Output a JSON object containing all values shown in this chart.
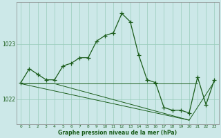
{
  "title": "Graphe pression niveau de la mer (hPa)",
  "bg_color": "#cce8e8",
  "grid_color": "#99ccbb",
  "line_color": "#1a5c1a",
  "xlim": [
    -0.5,
    23.5
  ],
  "ylim": [
    1021.55,
    1023.75
  ],
  "yticks": [
    1022,
    1023
  ],
  "xtick_labels": [
    "0",
    "1",
    "2",
    "3",
    "4",
    "5",
    "6",
    "7",
    "8",
    "9",
    "10",
    "11",
    "12",
    "13",
    "14",
    "15",
    "16",
    "17",
    "18",
    "19",
    "20",
    "21",
    "22",
    "23"
  ],
  "hours": [
    0,
    1,
    2,
    3,
    4,
    5,
    6,
    7,
    8,
    9,
    10,
    11,
    12,
    13,
    14,
    15,
    16,
    17,
    18,
    19,
    20,
    21,
    22,
    23
  ],
  "pressure_main": [
    1022.3,
    1022.55,
    1022.45,
    1022.35,
    1022.35,
    1022.6,
    1022.65,
    1022.75,
    1022.75,
    1023.05,
    1023.15,
    1023.2,
    1023.55,
    1023.4,
    1022.8,
    1022.35,
    1022.3,
    1021.85,
    1021.8,
    1021.8,
    1021.75,
    1022.4,
    1021.9,
    1022.35
  ],
  "line2_x": [
    0,
    4,
    21
  ],
  "line2_y": [
    1022.28,
    1022.28,
    1022.28
  ],
  "line3_x": [
    0,
    4,
    20
  ],
  "line3_y": [
    1022.28,
    1022.28,
    1021.62
  ],
  "line4_x": [
    0,
    4,
    21,
    23
  ],
  "line4_y": [
    1022.28,
    1022.28,
    1021.62,
    1022.32
  ]
}
